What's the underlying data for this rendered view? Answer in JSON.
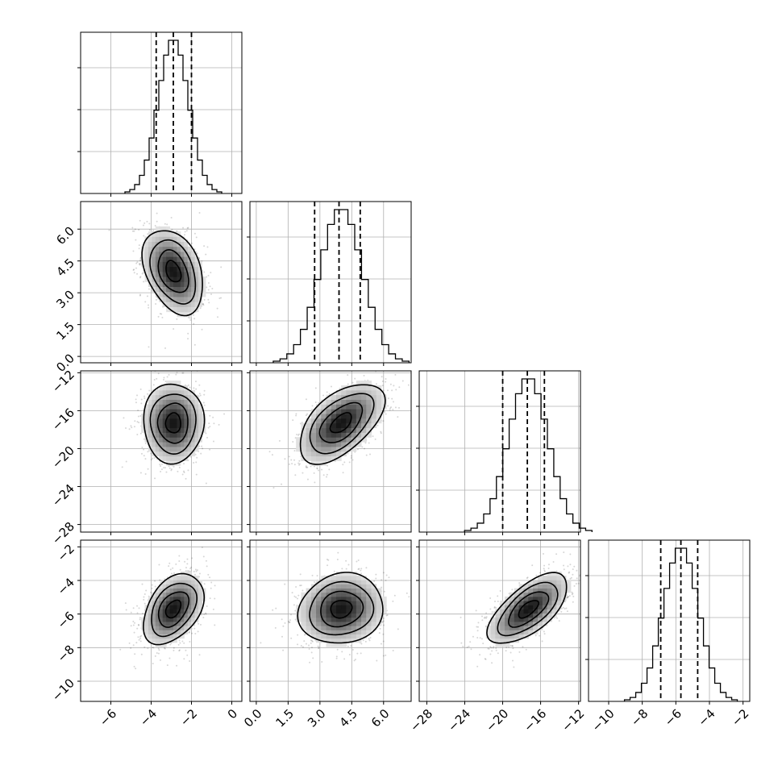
{
  "chart_data": {
    "type": "corner",
    "parameters": [
      {
        "range": [
          -7.5,
          0.5
        ],
        "ticks": [
          -6,
          -4,
          -2,
          0
        ],
        "tick_labels": [
          "−6",
          "−4",
          "−2",
          "0"
        ],
        "mean": -2.9,
        "sd": 0.75,
        "quantiles": [
          -3.75,
          -2.9,
          -2.0
        ]
      },
      {
        "range": [
          -0.3,
          7.3
        ],
        "ticks": [
          0.0,
          1.5,
          3.0,
          4.5,
          6.0
        ],
        "tick_labels": [
          "0.0",
          "1.5",
          "3.0",
          "4.5",
          "6.0"
        ],
        "mean": 4.0,
        "sd": 1.0,
        "quantiles": [
          2.75,
          3.9,
          4.9
        ]
      },
      {
        "range": [
          -28.8,
          -11.8
        ],
        "ticks": [
          -28,
          -24,
          -20,
          -16,
          -12
        ],
        "tick_labels": [
          "−28",
          "−24",
          "−20",
          "−16",
          "−12"
        ],
        "mean": -17.3,
        "sd": 2.1,
        "quantiles": [
          -20.0,
          -17.4,
          -15.6
        ]
      },
      {
        "range": [
          -11.2,
          -1.6
        ],
        "ticks": [
          -10,
          -8,
          -6,
          -4,
          -2
        ],
        "tick_labels": [
          "−10",
          "−8",
          "−6",
          "−4",
          "−2"
        ],
        "mean": -5.7,
        "sd": 1.05,
        "quantiles": [
          -6.9,
          -5.7,
          -4.7
        ]
      }
    ],
    "correlations": [
      [
        1.0,
        -0.35,
        0.0,
        0.4
      ],
      [
        -0.35,
        1.0,
        0.55,
        0.1
      ],
      [
        0.0,
        0.55,
        1.0,
        0.65
      ],
      [
        0.4,
        0.1,
        0.65,
        1.0
      ]
    ],
    "contour_levels_sigma": [
      0.5,
      1.0,
      1.5,
      2.0
    ],
    "histogram_bins": 20,
    "samples_drawn": 900,
    "grid": true
  }
}
